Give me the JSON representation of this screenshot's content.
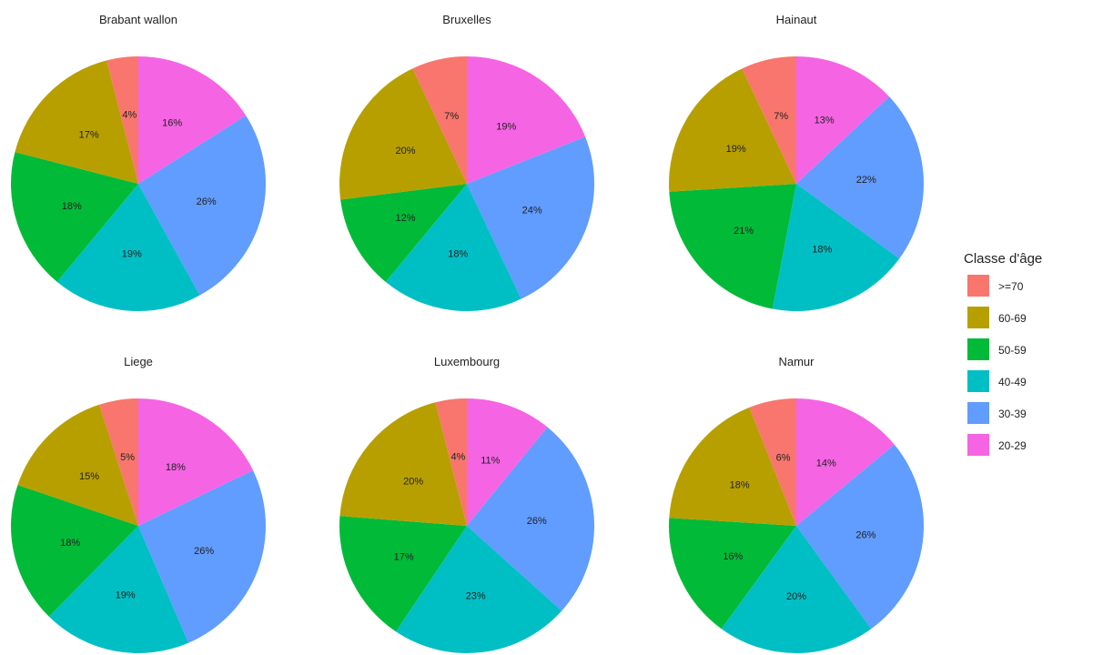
{
  "chart_data": {
    "type": "pie",
    "legend": {
      "title": "Classe d'âge",
      "position": "right",
      "entries": [
        {
          "label": ">=70",
          "color": "#F8766D"
        },
        {
          "label": "60-69",
          "color": "#B79F00"
        },
        {
          "label": "50-59",
          "color": "#00BA38"
        },
        {
          "label": "40-49",
          "color": "#00BFC4"
        },
        {
          "label": "30-39",
          "color": "#619CFF"
        },
        {
          "label": "20-29",
          "color": "#F564E3"
        }
      ]
    },
    "slice_order": [
      "20-29",
      "30-39",
      "40-49",
      "50-59",
      "60-69",
      ">=70"
    ],
    "panels": [
      {
        "title": "Brabant wallon",
        "values": [
          16,
          26,
          19,
          18,
          17,
          4
        ],
        "labels": [
          "16%",
          "26%",
          "19%",
          "18%",
          "17%",
          "4%"
        ]
      },
      {
        "title": "Bruxelles",
        "values": [
          19,
          24,
          18,
          12,
          20,
          7
        ],
        "labels": [
          "19%",
          "24%",
          "18%",
          "12%",
          "20%",
          "7%"
        ]
      },
      {
        "title": "Hainaut",
        "values": [
          13,
          22,
          18,
          21,
          19,
          7
        ],
        "labels": [
          "13%",
          "22%",
          "18%",
          "21%",
          "19%",
          "7%"
        ]
      },
      {
        "title": "Liege",
        "values": [
          18,
          26,
          19,
          18,
          15,
          5
        ],
        "labels": [
          "18%",
          "26%",
          "19%",
          "18%",
          "15%",
          "5%"
        ]
      },
      {
        "title": "Luxembourg",
        "values": [
          11,
          26,
          23,
          17,
          20,
          4
        ],
        "labels": [
          "11%",
          "26%",
          "23%",
          "17%",
          "20%",
          "4%"
        ]
      },
      {
        "title": "Namur",
        "values": [
          14,
          26,
          20,
          16,
          18,
          6
        ],
        "labels": [
          "14%",
          "26%",
          "20%",
          "16%",
          "18%",
          "6%"
        ]
      }
    ]
  }
}
